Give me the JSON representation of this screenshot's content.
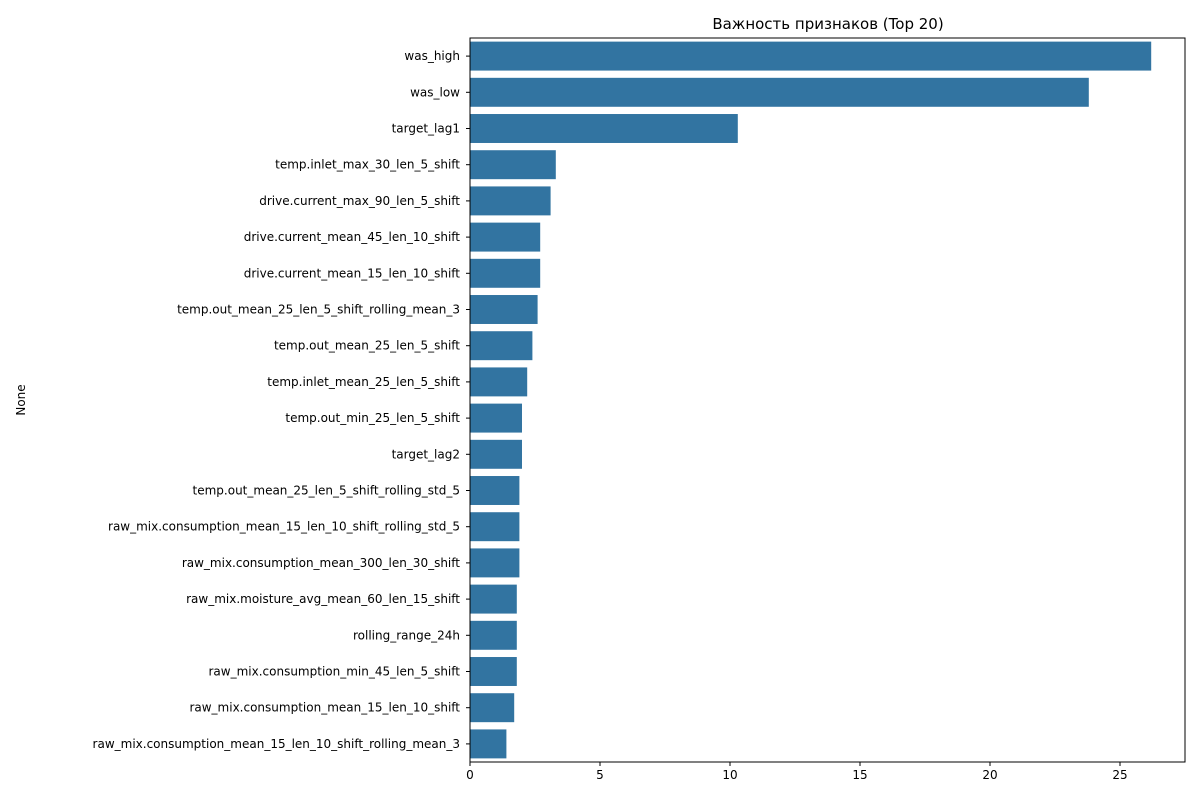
{
  "chart_data": {
    "type": "bar",
    "orientation": "horizontal",
    "title": "Важность признаков (Top 20)",
    "xlabel": "",
    "ylabel": "None",
    "xlim": [
      0,
      27.5
    ],
    "x_ticks": [
      0,
      5,
      10,
      15,
      20,
      25
    ],
    "grid": false,
    "legend": "none",
    "bar_color": "#3274a1",
    "categories": [
      "was_high",
      "was_low",
      "target_lag1",
      "temp.inlet_max_30_len_5_shift",
      "drive.current_max_90_len_5_shift",
      "drive.current_mean_45_len_10_shift",
      "drive.current_mean_15_len_10_shift",
      "temp.out_mean_25_len_5_shift_rolling_mean_3",
      "temp.out_mean_25_len_5_shift",
      "temp.inlet_mean_25_len_5_shift",
      "temp.out_min_25_len_5_shift",
      "target_lag2",
      "temp.out_mean_25_len_5_shift_rolling_std_5",
      "raw_mix.consumption_mean_15_len_10_shift_rolling_std_5",
      "raw_mix.consumption_mean_300_len_30_shift",
      "raw_mix.moisture_avg_mean_60_len_15_shift",
      "rolling_range_24h",
      "raw_mix.consumption_min_45_len_5_shift",
      "raw_mix.consumption_mean_15_len_10_shift",
      "raw_mix.consumption_mean_15_len_10_shift_rolling_mean_3"
    ],
    "values": [
      26.2,
      23.8,
      10.3,
      3.3,
      3.1,
      2.7,
      2.7,
      2.6,
      2.4,
      2.2,
      2.0,
      2.0,
      1.9,
      1.9,
      1.9,
      1.8,
      1.8,
      1.8,
      1.7,
      1.4
    ]
  }
}
